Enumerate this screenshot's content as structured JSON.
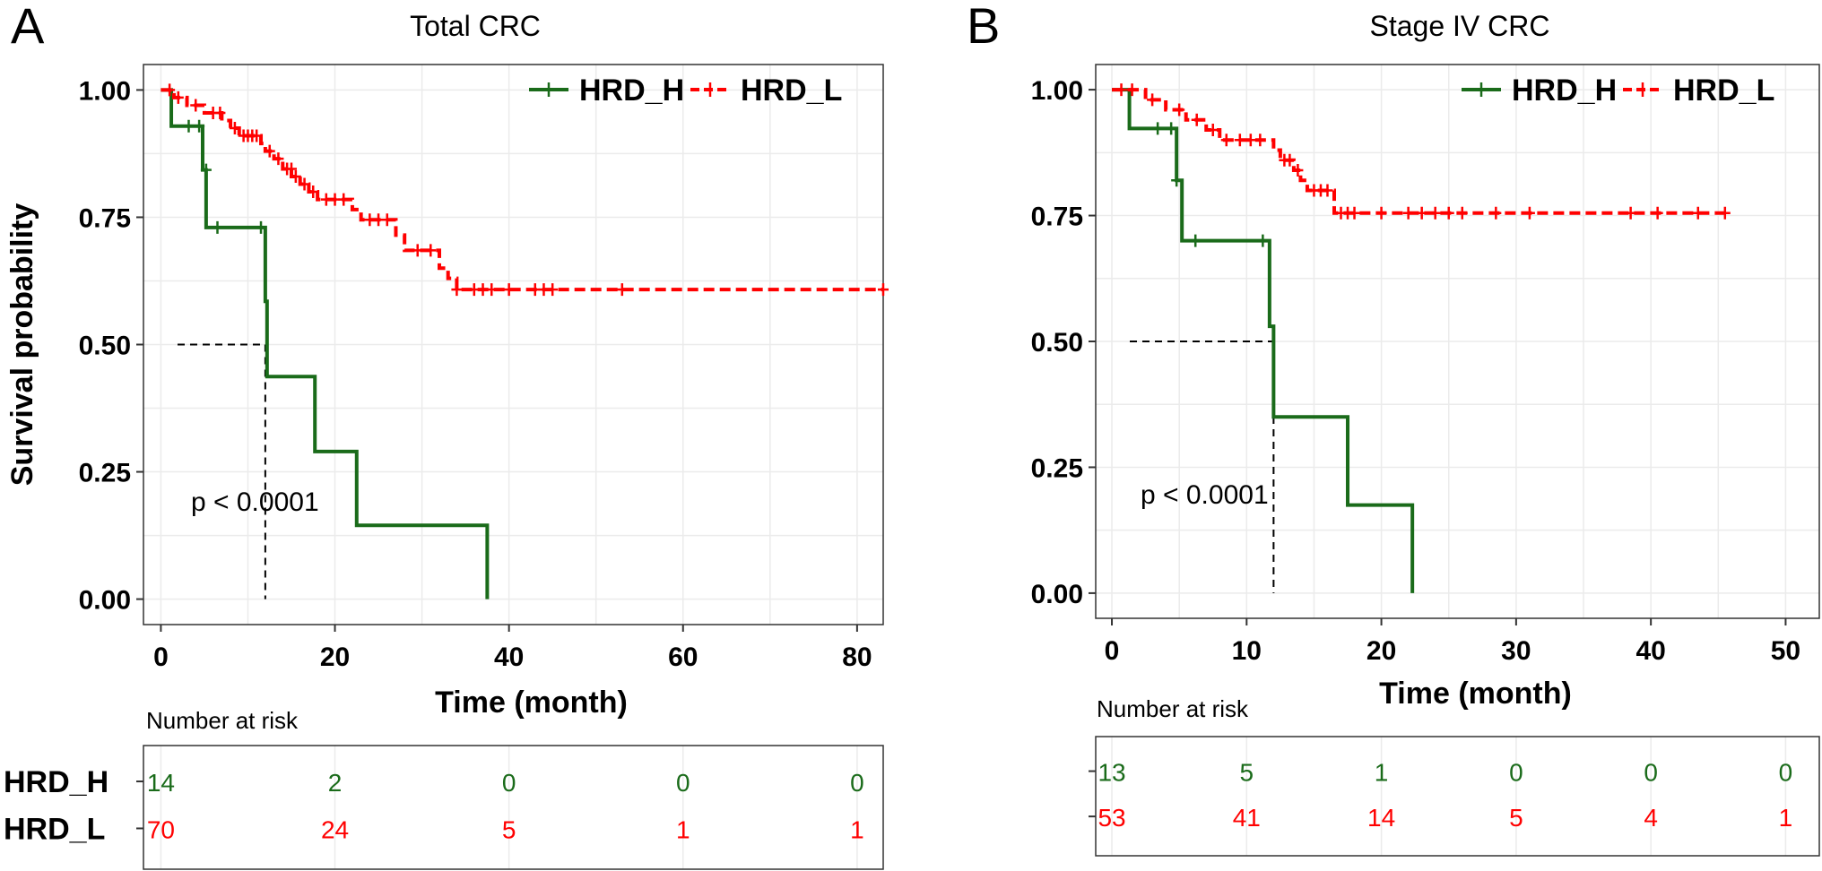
{
  "chart_data": [
    {
      "type": "line",
      "panel_label": "A",
      "title": "Total CRC",
      "xlabel": "Time (month)",
      "ylabel": "Survival probability",
      "xlim": [
        -2,
        83
      ],
      "ylim": [
        -0.05,
        1.05
      ],
      "x_ticks": [
        "0",
        "20",
        "40",
        "60",
        "80"
      ],
      "x_tick_values": [
        0,
        20,
        40,
        60,
        80
      ],
      "y_ticks": [
        "0.00",
        "0.25",
        "0.50",
        "0.75",
        "1.00"
      ],
      "y_tick_values": [
        0,
        0.25,
        0.5,
        0.75,
        1
      ],
      "grid": true,
      "legend_position": "top-right",
      "annotation": "p < 0.0001",
      "median_survival": {
        "x": 12,
        "y": 0.5
      },
      "series": [
        {
          "name": "HRD_H",
          "color": "#1a6b1a",
          "dash": false,
          "steps": [
            [
              0,
              1.0
            ],
            [
              1.2,
              0.929
            ],
            [
              4.8,
              0.843
            ],
            [
              5.2,
              0.73
            ],
            [
              12,
              0.585
            ],
            [
              12.2,
              0.437
            ],
            [
              17.7,
              0.29
            ],
            [
              22.5,
              0.145
            ],
            [
              37.5,
              0.0
            ]
          ],
          "censored": [
            [
              3.2,
              0.929
            ],
            [
              4.4,
              0.929
            ],
            [
              5.2,
              0.843
            ],
            [
              6.5,
              0.73
            ],
            [
              11.5,
              0.73
            ]
          ]
        },
        {
          "name": "HRD_L",
          "color": "#ff0000",
          "dash": true,
          "steps": [
            [
              0,
              1.0
            ],
            [
              1.5,
              0.985
            ],
            [
              3,
              0.97
            ],
            [
              5,
              0.955
            ],
            [
              7,
              0.94
            ],
            [
              8,
              0.925
            ],
            [
              9,
              0.91
            ],
            [
              11.5,
              0.895
            ],
            [
              12,
              0.88
            ],
            [
              13,
              0.865
            ],
            [
              14,
              0.845
            ],
            [
              15,
              0.83
            ],
            [
              16,
              0.815
            ],
            [
              17,
              0.8
            ],
            [
              18,
              0.785
            ],
            [
              22,
              0.765
            ],
            [
              23,
              0.745
            ],
            [
              27,
              0.715
            ],
            [
              28,
              0.685
            ],
            [
              32,
              0.65
            ],
            [
              33,
              0.63
            ],
            [
              34,
              0.608
            ]
          ],
          "censored": [
            [
              1,
              1.0
            ],
            [
              2,
              0.985
            ],
            [
              4,
              0.97
            ],
            [
              6,
              0.955
            ],
            [
              6.8,
              0.955
            ],
            [
              8.5,
              0.925
            ],
            [
              9.5,
              0.91
            ],
            [
              10,
              0.91
            ],
            [
              10.5,
              0.91
            ],
            [
              11,
              0.91
            ],
            [
              12.5,
              0.88
            ],
            [
              13.5,
              0.865
            ],
            [
              14.5,
              0.845
            ],
            [
              15,
              0.845
            ],
            [
              15.5,
              0.83
            ],
            [
              16.5,
              0.815
            ],
            [
              17.5,
              0.8
            ],
            [
              19,
              0.785
            ],
            [
              20,
              0.785
            ],
            [
              21,
              0.785
            ],
            [
              24,
              0.745
            ],
            [
              25,
              0.745
            ],
            [
              26,
              0.745
            ],
            [
              29.5,
              0.685
            ],
            [
              31,
              0.685
            ],
            [
              34,
              0.608
            ],
            [
              36,
              0.608
            ],
            [
              37,
              0.608
            ],
            [
              38,
              0.608
            ],
            [
              40,
              0.608
            ],
            [
              43,
              0.608
            ],
            [
              44,
              0.608
            ],
            [
              45,
              0.608
            ],
            [
              53,
              0.608
            ],
            [
              83,
              0.608
            ]
          ]
        }
      ],
      "risk_table": {
        "title": "Number at risk",
        "rows": [
          {
            "label": "HRD_H",
            "values": [
              "14",
              "2",
              "0",
              "0",
              "0"
            ]
          },
          {
            "label": "HRD_L",
            "values": [
              "70",
              "24",
              "5",
              "1",
              "1"
            ]
          }
        ]
      }
    },
    {
      "type": "line",
      "panel_label": "B",
      "title": "Stage IV CRC",
      "xlabel": "Time (month)",
      "ylabel": "",
      "xlim": [
        -1.2,
        52.5
      ],
      "ylim": [
        -0.05,
        1.05
      ],
      "x_ticks": [
        "0",
        "10",
        "20",
        "30",
        "40",
        "50"
      ],
      "x_tick_values": [
        0,
        10,
        20,
        30,
        40,
        50
      ],
      "y_ticks": [
        "0.00",
        "0.25",
        "0.50",
        "0.75",
        "1.00"
      ],
      "y_tick_values": [
        0,
        0.25,
        0.5,
        0.75,
        1
      ],
      "grid": true,
      "legend_position": "top-right",
      "annotation": "p < 0.0001",
      "median_survival": {
        "x": 12,
        "y": 0.5
      },
      "series": [
        {
          "name": "HRD_H",
          "color": "#1a6b1a",
          "dash": false,
          "steps": [
            [
              0,
              1.0
            ],
            [
              1.3,
              0.923
            ],
            [
              4.8,
              0.82
            ],
            [
              5.2,
              0.7
            ],
            [
              11.7,
              0.53
            ],
            [
              12,
              0.35
            ],
            [
              17.5,
              0.175
            ],
            [
              22.3,
              0.0
            ]
          ],
          "censored": [
            [
              3.4,
              0.923
            ],
            [
              4.4,
              0.923
            ],
            [
              4.8,
              0.82
            ],
            [
              6.2,
              0.7
            ],
            [
              11.2,
              0.7
            ]
          ]
        },
        {
          "name": "HRD_L",
          "color": "#ff0000",
          "dash": true,
          "steps": [
            [
              0,
              1.0
            ],
            [
              2.5,
              0.98
            ],
            [
              4,
              0.96
            ],
            [
              5.5,
              0.94
            ],
            [
              7,
              0.92
            ],
            [
              8,
              0.9
            ],
            [
              12,
              0.88
            ],
            [
              12.5,
              0.86
            ],
            [
              13.5,
              0.84
            ],
            [
              14,
              0.82
            ],
            [
              14.5,
              0.8
            ],
            [
              16.5,
              0.755
            ]
          ],
          "censored": [
            [
              0.7,
              1.0
            ],
            [
              1.5,
              1.0
            ],
            [
              3,
              0.98
            ],
            [
              5,
              0.96
            ],
            [
              6.3,
              0.94
            ],
            [
              7.5,
              0.92
            ],
            [
              8.5,
              0.9
            ],
            [
              9.5,
              0.9
            ],
            [
              10.3,
              0.9
            ],
            [
              11,
              0.9
            ],
            [
              12.8,
              0.86
            ],
            [
              13.2,
              0.86
            ],
            [
              13.8,
              0.84
            ],
            [
              15,
              0.8
            ],
            [
              15.5,
              0.8
            ],
            [
              16,
              0.8
            ],
            [
              17,
              0.755
            ],
            [
              17.5,
              0.755
            ],
            [
              18,
              0.755
            ],
            [
              20,
              0.755
            ],
            [
              22,
              0.755
            ],
            [
              23,
              0.755
            ],
            [
              24,
              0.755
            ],
            [
              25,
              0.755
            ],
            [
              26,
              0.755
            ],
            [
              28.5,
              0.755
            ],
            [
              31,
              0.755
            ],
            [
              38.5,
              0.755
            ],
            [
              40.5,
              0.755
            ],
            [
              43.5,
              0.755
            ],
            [
              45.5,
              0.755
            ]
          ]
        }
      ],
      "risk_table": {
        "title": "Number at risk",
        "rows": [
          {
            "label": "",
            "values": [
              "13",
              "5",
              "1",
              "0",
              "0",
              "0"
            ]
          },
          {
            "label": "",
            "values": [
              "53",
              "41",
              "14",
              "5",
              "4",
              "1"
            ]
          }
        ]
      }
    }
  ]
}
